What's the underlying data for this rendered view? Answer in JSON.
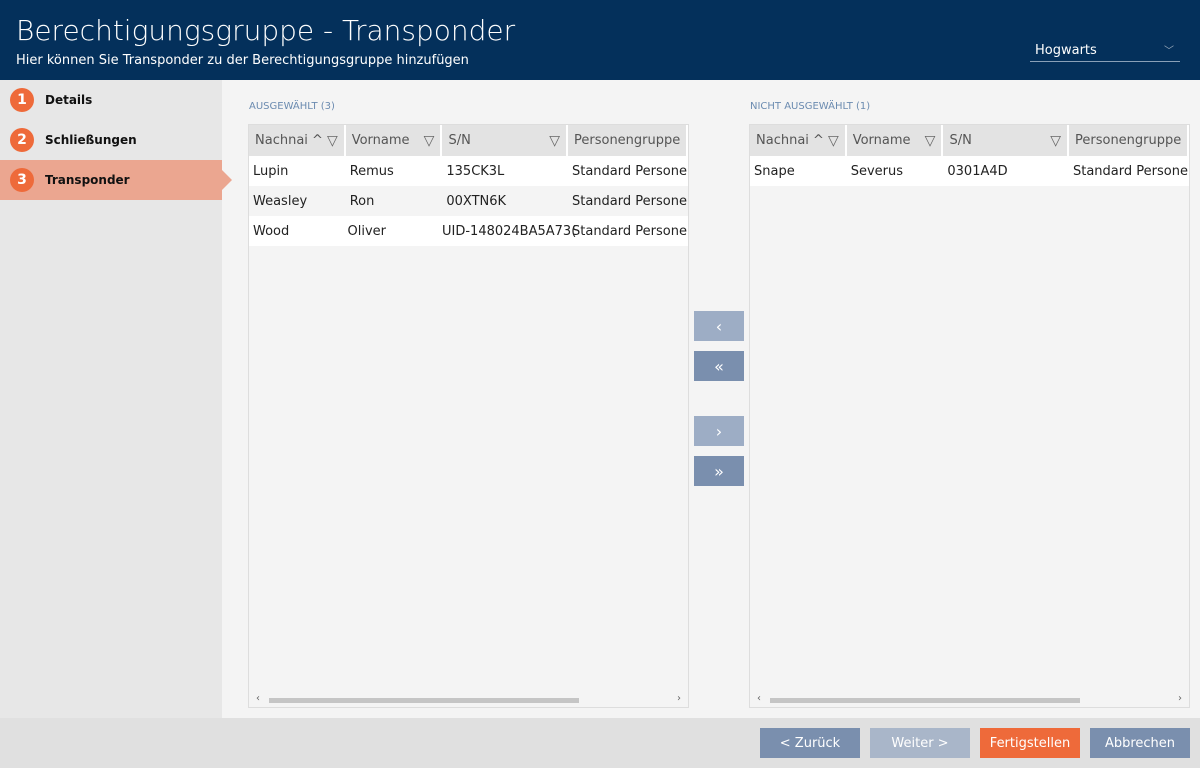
{
  "header": {
    "title": "Berechtigungsgruppe - Transponder",
    "subtitle": "Hier können Sie Transponder zu der Berechtigungsgruppe hinzufügen",
    "site": "Hogwarts"
  },
  "steps": [
    {
      "num": "1",
      "label": "Details"
    },
    {
      "num": "2",
      "label": "Schließungen"
    },
    {
      "num": "3",
      "label": "Transponder",
      "active": true
    }
  ],
  "selected": {
    "caption": "AUSGEWÄHLT (3)",
    "columns": [
      "Nachnai ^",
      "Vorname",
      "S/N",
      "Personengruppe"
    ],
    "rows": [
      [
        "Lupin",
        "Remus",
        "135CK3L",
        "Standard Persone"
      ],
      [
        "Weasley",
        "Ron",
        "00XTN6K",
        "Standard Persone"
      ],
      [
        "Wood",
        "Oliver",
        "UID-148024BA5A73(",
        "Standard Persone"
      ]
    ]
  },
  "unselected": {
    "caption": "NICHT AUSGEWÄHLT (1)",
    "columns": [
      "Nachnai ^",
      "Vorname",
      "S/N",
      "Personengruppe"
    ],
    "rows": [
      [
        "Snape",
        "Severus",
        "0301A4D",
        "Standard Persone"
      ]
    ]
  },
  "move": {
    "left": "‹",
    "all_left": "«",
    "right": "›",
    "all_right": "»"
  },
  "footer": {
    "back": "< Zurück",
    "next": "Weiter >",
    "finish": "Fertigstellen",
    "cancel": "Abbrechen"
  },
  "colors": {
    "header": "#04305b",
    "accent": "#ee6a3a",
    "active_step": "#eba690",
    "finish": "#ee6a3a",
    "button": "#7a8fae"
  }
}
